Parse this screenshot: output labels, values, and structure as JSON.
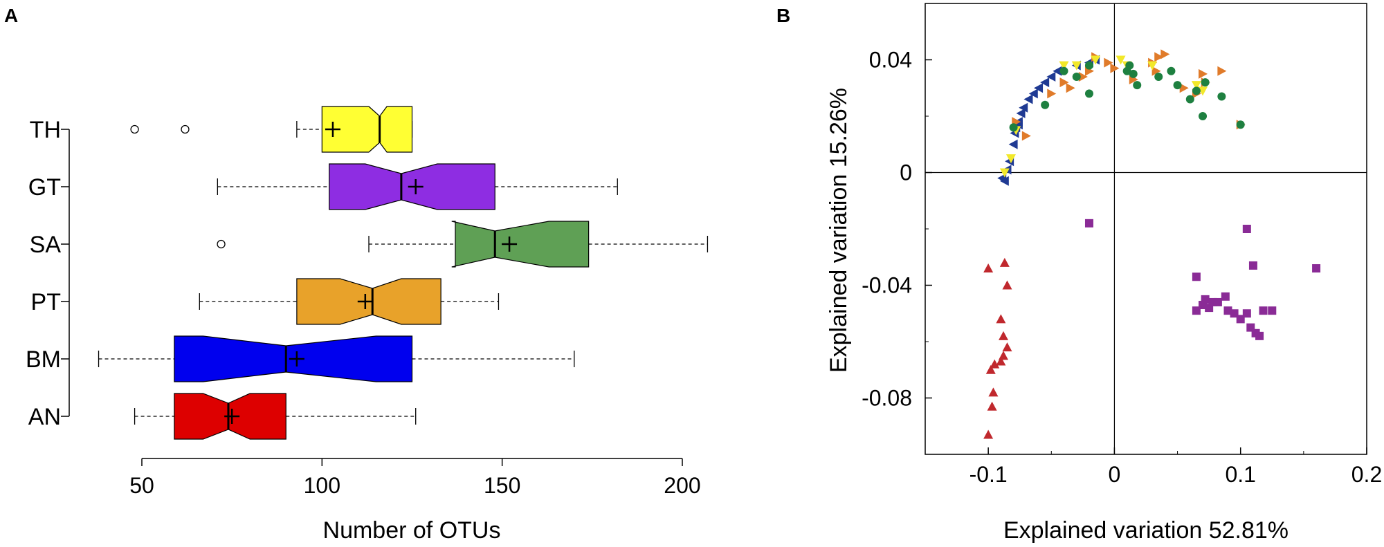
{
  "chart_data": [
    {
      "panel": "A",
      "type": "boxplot",
      "orientation": "horizontal",
      "notched": true,
      "xlabel": "Number of OTUs",
      "xlim": [
        50,
        200
      ],
      "xticks": [
        50,
        100,
        150,
        200
      ],
      "categories": [
        "TH",
        "GT",
        "SA",
        "PT",
        "BM",
        "AN"
      ],
      "boxes": [
        {
          "name": "TH",
          "color": "#ffff33",
          "whisker_low": 93,
          "q1": 100,
          "notch_low": 113,
          "median": 116,
          "notch_high": 118,
          "q3": 125,
          "whisker_high": 125,
          "mean": 103,
          "outliers": [
            48,
            62
          ]
        },
        {
          "name": "GT",
          "color": "#8e2de2",
          "whisker_low": 71,
          "q1": 102,
          "notch_low": 112,
          "median": 122,
          "notch_high": 132,
          "q3": 148,
          "whisker_high": 182,
          "mean": 126,
          "outliers": []
        },
        {
          "name": "SA",
          "color": "#5fa055",
          "whisker_low": 113,
          "q1": 137,
          "notch_low": 136,
          "median": 148,
          "notch_high": 163,
          "q3": 174,
          "whisker_high": 207,
          "mean": 152,
          "outliers": [
            72
          ]
        },
        {
          "name": "PT",
          "color": "#e8a22a",
          "whisker_low": 66,
          "q1": 93,
          "notch_low": 105,
          "median": 114,
          "notch_high": 122,
          "q3": 133,
          "whisker_high": 149,
          "mean": 112,
          "outliers": []
        },
        {
          "name": "BM",
          "color": "#0000ee",
          "whisker_low": 38,
          "q1": 59,
          "notch_low": 67,
          "median": 90,
          "notch_high": 115,
          "q3": 125,
          "whisker_high": 170,
          "mean": 93,
          "outliers": []
        },
        {
          "name": "AN",
          "color": "#dd0000",
          "whisker_low": 48,
          "q1": 59,
          "notch_low": 67,
          "median": 74,
          "notch_high": 80,
          "q3": 90,
          "whisker_high": 126,
          "mean": 75,
          "outliers": []
        }
      ]
    },
    {
      "panel": "B",
      "type": "scatter",
      "xlabel": "Explained variation 52.81%",
      "ylabel": "Explained variation 15.26%",
      "xlim": [
        -0.15,
        0.2
      ],
      "ylim": [
        -0.1,
        0.06
      ],
      "xticks": [
        -0.1,
        0,
        0.1,
        0.2
      ],
      "xtick_labels": [
        "-0.1",
        "0",
        "0.1",
        "0.2"
      ],
      "yticks": [
        -0.08,
        -0.04,
        0,
        0.04
      ],
      "ytick_labels": [
        "-0.08",
        "-0.04",
        "0",
        "0.04"
      ],
      "series": [
        {
          "name": "blue",
          "marker": "triangle-left",
          "color": "#1f3a93",
          "points": [
            [
              -0.089,
              -0.002
            ],
            [
              -0.087,
              -0.003
            ],
            [
              -0.085,
              0.001
            ],
            [
              -0.083,
              0.004
            ],
            [
              -0.08,
              0.01
            ],
            [
              -0.079,
              0.014
            ],
            [
              -0.078,
              0.016
            ],
            [
              -0.076,
              0.018
            ],
            [
              -0.074,
              0.021
            ],
            [
              -0.072,
              0.023
            ],
            [
              -0.068,
              0.026
            ],
            [
              -0.064,
              0.028
            ],
            [
              -0.06,
              0.03
            ],
            [
              -0.055,
              0.032
            ],
            [
              -0.05,
              0.034
            ],
            [
              -0.045,
              0.036
            ],
            [
              -0.03,
              0.038
            ],
            [
              -0.02,
              0.039
            ],
            [
              -0.015,
              0.04
            ],
            [
              -0.076,
              0.017
            ]
          ]
        },
        {
          "name": "orange",
          "marker": "triangle-right",
          "color": "#e07b2a",
          "points": [
            [
              -0.078,
              0.018
            ],
            [
              -0.07,
              0.013
            ],
            [
              -0.05,
              0.028
            ],
            [
              -0.04,
              0.032
            ],
            [
              -0.035,
              0.03
            ],
            [
              -0.025,
              0.034
            ],
            [
              -0.02,
              0.036
            ],
            [
              -0.015,
              0.041
            ],
            [
              -0.005,
              0.039
            ],
            [
              0.0,
              0.037
            ],
            [
              0.015,
              0.033
            ],
            [
              0.03,
              0.039
            ],
            [
              0.033,
              0.036
            ],
            [
              0.035,
              0.041
            ],
            [
              0.04,
              0.042
            ],
            [
              0.055,
              0.03
            ],
            [
              0.065,
              0.028
            ],
            [
              0.07,
              0.035
            ],
            [
              0.072,
              0.032
            ],
            [
              0.085,
              0.036
            ],
            [
              0.1,
              0.017
            ]
          ]
        },
        {
          "name": "yellow",
          "marker": "triangle-down",
          "color": "#f2e82a",
          "points": [
            [
              -0.087,
              0.0
            ],
            [
              -0.082,
              0.005
            ],
            [
              -0.078,
              0.015
            ],
            [
              -0.04,
              0.038
            ],
            [
              -0.03,
              0.038
            ],
            [
              -0.015,
              0.04
            ],
            [
              0.005,
              0.04
            ],
            [
              0.01,
              0.038
            ],
            [
              0.03,
              0.038
            ],
            [
              0.065,
              0.031
            ],
            [
              0.07,
              0.029
            ]
          ]
        },
        {
          "name": "green",
          "marker": "circle",
          "color": "#1e8040",
          "points": [
            [
              -0.08,
              0.016
            ],
            [
              -0.055,
              0.024
            ],
            [
              -0.04,
              0.036
            ],
            [
              -0.03,
              0.034
            ],
            [
              -0.02,
              0.038
            ],
            [
              -0.02,
              0.028
            ],
            [
              0.01,
              0.036
            ],
            [
              0.012,
              0.038
            ],
            [
              0.015,
              0.035
            ],
            [
              0.018,
              0.031
            ],
            [
              0.035,
              0.034
            ],
            [
              0.045,
              0.036
            ],
            [
              0.05,
              0.031
            ],
            [
              0.06,
              0.026
            ],
            [
              0.065,
              0.029
            ],
            [
              0.072,
              0.032
            ],
            [
              0.07,
              0.02
            ],
            [
              0.085,
              0.027
            ],
            [
              0.1,
              0.017
            ]
          ]
        },
        {
          "name": "purple",
          "marker": "square",
          "color": "#8a2b96",
          "points": [
            [
              -0.02,
              -0.018
            ],
            [
              0.065,
              -0.037
            ],
            [
              0.065,
              -0.049
            ],
            [
              0.07,
              -0.047
            ],
            [
              0.072,
              -0.045
            ],
            [
              0.075,
              -0.048
            ],
            [
              0.078,
              -0.046
            ],
            [
              0.082,
              -0.046
            ],
            [
              0.088,
              -0.044
            ],
            [
              0.09,
              -0.049
            ],
            [
              0.095,
              -0.05
            ],
            [
              0.1,
              -0.052
            ],
            [
              0.105,
              -0.05
            ],
            [
              0.105,
              -0.02
            ],
            [
              0.11,
              -0.033
            ],
            [
              0.108,
              -0.055
            ],
            [
              0.112,
              -0.057
            ],
            [
              0.115,
              -0.058
            ],
            [
              0.118,
              -0.049
            ],
            [
              0.125,
              -0.049
            ],
            [
              0.16,
              -0.034
            ]
          ]
        },
        {
          "name": "red",
          "marker": "triangle-up",
          "color": "#c0282d",
          "points": [
            [
              -0.1,
              -0.034
            ],
            [
              -0.087,
              -0.032
            ],
            [
              -0.085,
              -0.04
            ],
            [
              -0.09,
              -0.052
            ],
            [
              -0.088,
              -0.058
            ],
            [
              -0.085,
              -0.062
            ],
            [
              -0.088,
              -0.065
            ],
            [
              -0.09,
              -0.067
            ],
            [
              -0.095,
              -0.068
            ],
            [
              -0.098,
              -0.07
            ],
            [
              -0.096,
              -0.078
            ],
            [
              -0.097,
              -0.083
            ],
            [
              -0.1,
              -0.093
            ]
          ]
        }
      ]
    }
  ],
  "labels": {
    "panel_a": "A",
    "panel_b": "B"
  }
}
